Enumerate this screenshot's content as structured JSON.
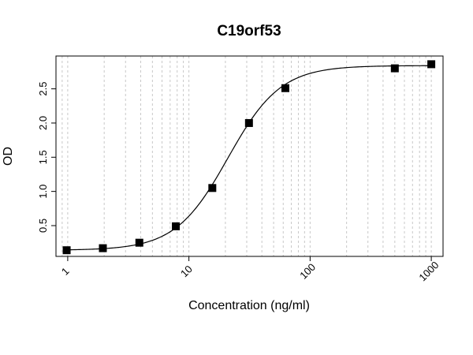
{
  "chart_data": {
    "type": "scatter",
    "title": "C19orf53",
    "xlabel": "Concentration (ng/ml)",
    "ylabel": "OD",
    "x_scale": "log",
    "xlim": [
      0.8,
      1250
    ],
    "ylim": [
      0.05,
      2.98
    ],
    "x_ticks": [
      1,
      10,
      100,
      1000
    ],
    "x_tick_labels": [
      "1",
      "10",
      "100",
      "1000"
    ],
    "y_ticks": [
      0.5,
      1.0,
      1.5,
      2.0,
      2.5
    ],
    "y_tick_labels": [
      "0.5",
      "1.0",
      "1.5",
      "2.0",
      "2.5"
    ],
    "grid": true,
    "points": [
      {
        "x": 0.98,
        "y": 0.14
      },
      {
        "x": 1.95,
        "y": 0.17
      },
      {
        "x": 3.9,
        "y": 0.25
      },
      {
        "x": 7.8,
        "y": 0.49
      },
      {
        "x": 15.6,
        "y": 1.05
      },
      {
        "x": 31.3,
        "y": 2.0
      },
      {
        "x": 62.5,
        "y": 2.51
      },
      {
        "x": 500,
        "y": 2.8
      },
      {
        "x": 1000,
        "y": 2.86
      }
    ],
    "fit_curve": {
      "model": "4PL",
      "bottom": 0.14,
      "top": 2.84,
      "ec50": 21,
      "hill": 2.0
    }
  }
}
